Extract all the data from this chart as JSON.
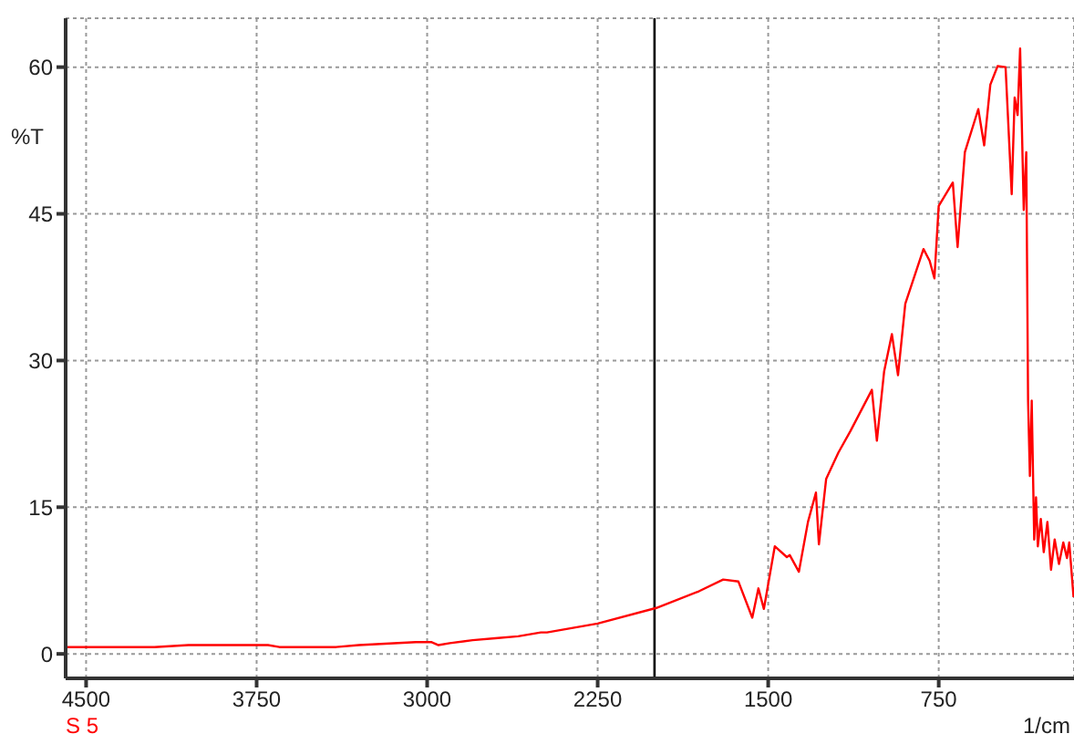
{
  "chart_data": {
    "type": "line",
    "xlabel": "1/cm",
    "ylabel": "%T",
    "xlim": [
      4590,
      155
    ],
    "xticks": [
      4500,
      3750,
      3000,
      2250,
      1500,
      750
    ],
    "ylim": [
      -2.5,
      65
    ],
    "yticks": [
      0,
      15,
      30,
      45,
      60
    ],
    "grid": true,
    "legend": "bottom left",
    "marker": "none",
    "line_style": "solid",
    "ref_lines": [
      {
        "axis": "x",
        "value": 2000,
        "color": "#000000",
        "line_style": "solid"
      }
    ],
    "series": [
      {
        "name": "S 5",
        "color": "#ff0000",
        "x": [
          4590,
          4200,
          4050,
          3900,
          3800,
          3700,
          3650,
          3400,
          3300,
          3050,
          2980,
          2950,
          2900,
          2800,
          2700,
          2600,
          2500,
          2473,
          2250,
          1992,
          1805,
          1698,
          1631,
          1570,
          1543,
          1519,
          1471,
          1418,
          1405,
          1365,
          1325,
          1290,
          1277,
          1245,
          1191,
          1138,
          1044,
          1022,
          990,
          956,
          929,
          897,
          817,
          790,
          769,
          750,
          688,
          667,
          635,
          576,
          550,
          523,
          491,
          456,
          429,
          416,
          403,
          392,
          376,
          365,
          357,
          349,
          341,
          330,
          322,
          314,
          301,
          288,
          272,
          256,
          240,
          221,
          202,
          186,
          176,
          157
        ],
        "values": [
          0.7,
          0.7,
          0.9,
          0.9,
          0.9,
          0.9,
          0.7,
          0.7,
          0.9,
          1.2,
          1.2,
          0.9,
          1.1,
          1.4,
          1.6,
          1.8,
          2.2,
          2.2,
          3.1,
          4.7,
          6.4,
          7.6,
          7.4,
          3.7,
          6.7,
          4.6,
          11.0,
          9.9,
          10.1,
          8.4,
          13.5,
          16.5,
          11.2,
          17.9,
          20.6,
          22.8,
          27.0,
          21.8,
          28.9,
          32.7,
          28.5,
          35.8,
          41.4,
          40.2,
          38.4,
          45.8,
          48.2,
          41.6,
          51.3,
          55.7,
          52.0,
          58.2,
          60.1,
          60.0,
          47.0,
          56.9,
          55.1,
          61.9,
          45.4,
          51.3,
          25.9,
          18.2,
          25.9,
          11.7,
          16.0,
          11.0,
          13.8,
          10.4,
          13.5,
          8.6,
          11.7,
          9.2,
          11.4,
          9.8,
          11.4,
          5.8
        ]
      }
    ]
  }
}
